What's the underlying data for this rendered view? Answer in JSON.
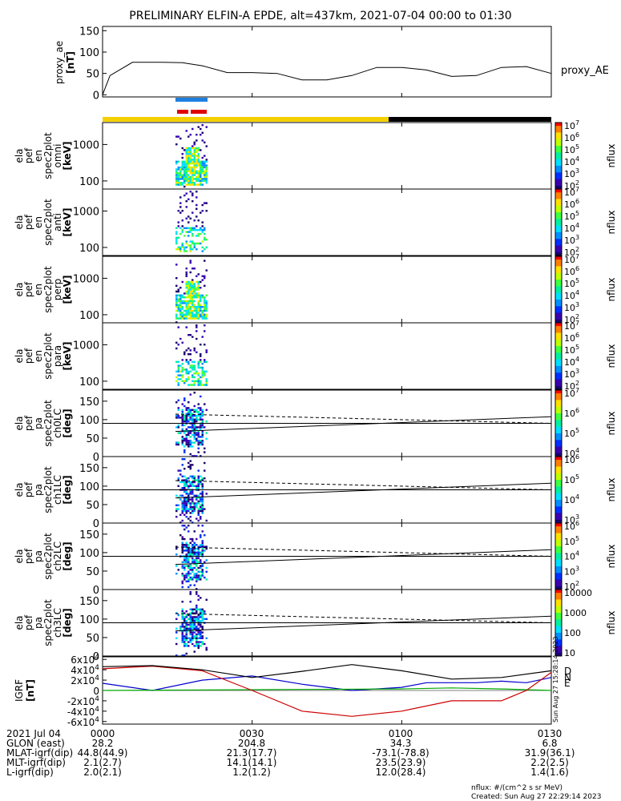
{
  "chart_data": {
    "type": "line",
    "title": "PRELIMINARY ELFIN-A EPDE, alt=437km, 2021-07-04 00:00 to 01:30",
    "panels": [
      {
        "id": "proxy_ae",
        "type": "line",
        "ylabel": [
          "proxy_ae",
          "[nT]"
        ],
        "ylim": [
          -5,
          160
        ],
        "yticks": [
          "0",
          "50",
          "100",
          "150"
        ],
        "legend": "proxy_AE",
        "series": [
          {
            "name": "proxy_AE",
            "x": [
              0,
              1.5,
              6,
              12,
              16,
              20,
              25,
              30,
              35,
              40,
              45,
              50,
              55,
              60,
              65,
              70,
              75,
              80,
              85,
              90
            ],
            "y": [
              0,
              45,
              76,
              76,
              75,
              68,
              52,
              52,
              50,
              35,
              35,
              45,
              64,
              64,
              58,
              43,
              45,
              64,
              66,
              50
            ]
          }
        ]
      },
      {
        "id": "omni",
        "type": "heatmap",
        "ylabel": [
          "ela",
          "pef",
          "en",
          "spec2plot",
          "omni",
          "[keV]"
        ],
        "scale": "log",
        "yticks": [
          "100",
          "1000"
        ],
        "cbar_label": "nflux",
        "cbar_ticks": [
          "10^2",
          "10^3",
          "10^4",
          "10^5",
          "10^6",
          "10^7"
        ]
      },
      {
        "id": "anti",
        "type": "heatmap",
        "ylabel": [
          "ela",
          "pef",
          "en",
          "spec2plot",
          "anti",
          "[keV]"
        ],
        "scale": "log",
        "yticks": [
          "100",
          "1000"
        ],
        "cbar_label": "nflux",
        "cbar_ticks": [
          "10^2",
          "10^3",
          "10^4",
          "10^5",
          "10^6",
          "10^7"
        ]
      },
      {
        "id": "perp",
        "type": "heatmap",
        "ylabel": [
          "ela",
          "pef",
          "en",
          "spec2plot",
          "perp",
          "[keV]"
        ],
        "scale": "log",
        "yticks": [
          "100",
          "1000"
        ],
        "cbar_label": "nflux",
        "cbar_ticks": [
          "10^2",
          "10^3",
          "10^4",
          "10^5",
          "10^6",
          "10^7"
        ]
      },
      {
        "id": "para",
        "type": "heatmap",
        "ylabel": [
          "ela",
          "pef",
          "en",
          "spec2plot",
          "para",
          "[keV]"
        ],
        "scale": "log",
        "yticks": [
          "100",
          "1000"
        ],
        "cbar_label": "nflux",
        "cbar_ticks": [
          "10^2",
          "10^3",
          "10^4",
          "10^5",
          "10^6",
          "10^7"
        ]
      },
      {
        "id": "ch0",
        "type": "heatmap",
        "ylabel": [
          "ela",
          "pef",
          "pa",
          "spec2plot",
          "ch0LC",
          "[deg]"
        ],
        "ylim": [
          0,
          180
        ],
        "yticks": [
          "0",
          "50",
          "100",
          "150"
        ],
        "cbar_label": "nflux",
        "cbar_ticks": [
          "10^4",
          "10^5",
          "10^6",
          "10^7"
        ]
      },
      {
        "id": "ch1",
        "type": "heatmap",
        "ylabel": [
          "ela",
          "pef",
          "pa",
          "spec2plot",
          "ch1LC",
          "[deg]"
        ],
        "ylim": [
          0,
          180
        ],
        "yticks": [
          "0",
          "50",
          "100",
          "150"
        ],
        "cbar_label": "nflux",
        "cbar_ticks": [
          "10^3",
          "10^4",
          "10^5",
          "10^6"
        ]
      },
      {
        "id": "ch2",
        "type": "heatmap",
        "ylabel": [
          "ela",
          "pef",
          "pa",
          "spec2plot",
          "ch2LC",
          "[deg]"
        ],
        "ylim": [
          0,
          180
        ],
        "yticks": [
          "0",
          "50",
          "100",
          "150"
        ],
        "cbar_label": "nflux",
        "cbar_ticks": [
          "10^2",
          "10^3",
          "10^4",
          "10^5",
          "10^6"
        ]
      },
      {
        "id": "ch3",
        "type": "heatmap",
        "ylabel": [
          "ela",
          "pef",
          "pa",
          "spec2plot",
          "ch3LC",
          "[deg]"
        ],
        "ylim": [
          0,
          180
        ],
        "yticks": [
          "0",
          "50",
          "100",
          "150"
        ],
        "cbar_label": "nflux",
        "cbar_ticks": [
          "10",
          "100",
          "1000",
          "10000"
        ]
      },
      {
        "id": "igrf",
        "type": "line",
        "ylabel": [
          "IGRF",
          "[nT]"
        ],
        "ylim": [
          -65000,
          65000
        ],
        "yticks": [
          "-6x10^4",
          "-4x10^4",
          "-2x10^4",
          "0",
          "2x10^4",
          "4x10^4",
          "6x10^4"
        ],
        "legend": [
          "N",
          "E",
          "D"
        ],
        "series": [
          {
            "name": "N",
            "color": "#0000cc",
            "x": [
              0,
              10,
              20,
              30,
              40,
              50,
              60,
              65,
              70,
              75,
              80,
              85,
              90
            ],
            "y": [
              14000,
              0,
              20000,
              28000,
              12000,
              0,
              6000,
              15000,
              15000,
              15000,
              18000,
              15000,
              25000
            ]
          },
          {
            "name": "E",
            "color": "#00aa00",
            "x": [
              0,
              20,
              40,
              60,
              70,
              80,
              90
            ],
            "y": [
              0,
              1000,
              2000,
              3000,
              5000,
              3000,
              0
            ]
          },
          {
            "name": "D",
            "color": "#cc0000",
            "x": [
              0,
              10,
              20,
              30,
              40,
              50,
              60,
              70,
              80,
              85,
              90
            ],
            "y": [
              42000,
              47000,
              38000,
              0,
              -40000,
              -50000,
              -40000,
              -20000,
              -20000,
              0,
              35000
            ]
          },
          {
            "name": "total",
            "color": "#000000",
            "x": [
              0,
              10,
              20,
              30,
              40,
              50,
              60,
              70,
              80,
              90
            ],
            "y": [
              46000,
              48000,
              40000,
              25000,
              37000,
              50000,
              38000,
              22000,
              25000,
              38000
            ]
          }
        ]
      }
    ],
    "xaxis": {
      "range": [
        0,
        90
      ],
      "unit": "min",
      "ticks": [
        "0000",
        "0030",
        "0100",
        "0130"
      ]
    }
  },
  "ephemeris": {
    "rows": [
      {
        "label": "2021 Jul 04",
        "values": [
          "0000",
          "0030",
          "0100",
          "0130"
        ]
      },
      {
        "label": "GLON (east)",
        "values": [
          "28.2",
          "204.8",
          "34.3",
          "6.8"
        ]
      },
      {
        "label": "MLAT-igrf(dip)",
        "values": [
          "44.8(44.9)",
          "21.3(17.7)",
          "-73.1(-78.8)",
          "31.9(36.1)"
        ]
      },
      {
        "label": "MLT-igrf(dip)",
        "values": [
          "2.1(2.7)",
          "14.1(14.1)",
          "23.5(23.9)",
          "2.2(2.5)"
        ]
      },
      {
        "label": "L-igrf(dip)",
        "values": [
          "2.0(2.1)",
          "1.2(1.2)",
          "12.0(28.4)",
          "1.4(1.6)"
        ]
      }
    ]
  },
  "footer": {
    "units": "nflux: #/(cm^2 s sr MeV)",
    "created": "Created: Sun Aug 27 22:29:14 2023",
    "stamp": "Sun Aug 27 15:28:14 2023"
  },
  "colors": {
    "science_bar_blue": "#1f7fe0",
    "science_bar_red": "#e00000",
    "day_bar": "#f5d000",
    "night_bar": "#000000"
  }
}
